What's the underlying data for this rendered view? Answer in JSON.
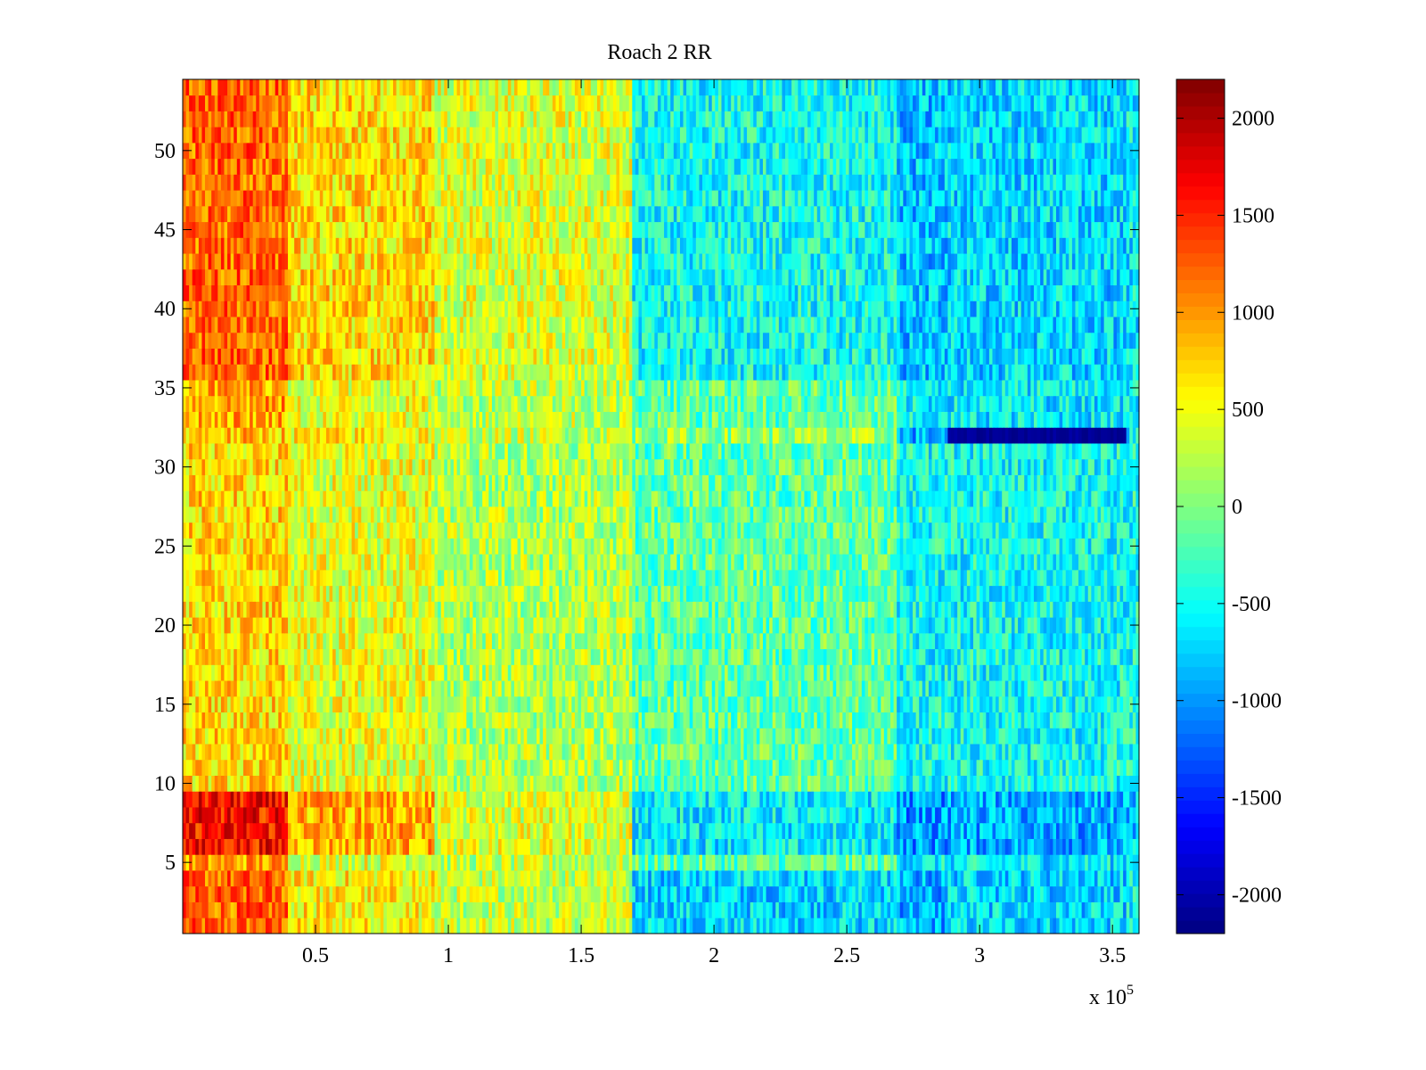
{
  "chart_data": {
    "type": "heatmap",
    "title": "Roach 2 RR",
    "xlabel": "",
    "ylabel": "",
    "x_multiplier": {
      "base": "x 10",
      "exponent": "5"
    },
    "xlim": [
      0,
      3.6
    ],
    "ylim": [
      0.5,
      54.5
    ],
    "x_ticks": [
      {
        "value": 0.5,
        "label": "0.5"
      },
      {
        "value": 1,
        "label": "1"
      },
      {
        "value": 1.5,
        "label": "1.5"
      },
      {
        "value": 2,
        "label": "2"
      },
      {
        "value": 2.5,
        "label": "2.5"
      },
      {
        "value": 3,
        "label": "3"
      },
      {
        "value": 3.5,
        "label": "3.5"
      }
    ],
    "y_ticks": [
      {
        "value": 5,
        "label": "5"
      },
      {
        "value": 10,
        "label": "10"
      },
      {
        "value": 15,
        "label": "15"
      },
      {
        "value": 20,
        "label": "20"
      },
      {
        "value": 25,
        "label": "25"
      },
      {
        "value": 30,
        "label": "30"
      },
      {
        "value": 35,
        "label": "35"
      },
      {
        "value": 40,
        "label": "40"
      },
      {
        "value": 45,
        "label": "45"
      },
      {
        "value": 50,
        "label": "50"
      }
    ],
    "colorbar": {
      "colormap": "jet",
      "clim": [
        -2200,
        2200
      ],
      "ticks": [
        {
          "value": 2000,
          "label": "2000"
        },
        {
          "value": 1500,
          "label": "1500"
        },
        {
          "value": 1000,
          "label": "1000"
        },
        {
          "value": 500,
          "label": "500"
        },
        {
          "value": 0,
          "label": "0"
        },
        {
          "value": -500,
          "label": "-500"
        },
        {
          "value": -1000,
          "label": "-1000"
        },
        {
          "value": -1500,
          "label": "-1500"
        },
        {
          "value": -2000,
          "label": "-2000"
        }
      ]
    },
    "rows": 54,
    "x_segments_start": [
      0,
      0.4,
      0.95,
      1.69,
      2.69,
      2.88,
      3.55
    ],
    "segment_means": {
      "default": [
        950,
        450,
        250,
        -150,
        -600,
        -600,
        -500
      ],
      "rows_1_4": [
        1200,
        600,
        300,
        -700,
        -900,
        -700,
        -600
      ],
      "rows_6_9": [
        1600,
        900,
        400,
        -600,
        -1000,
        -900,
        -800
      ],
      "rows_10_31": [
        700,
        450,
        200,
        -150,
        -500,
        -500,
        -450
      ],
      "rows_36_54": [
        1200,
        700,
        400,
        -500,
        -800,
        -700,
        -600
      ],
      "row_32": [
        800,
        600,
        300,
        100,
        -900,
        -2100,
        -600
      ]
    },
    "noise_amplitude": 450
  },
  "colors": {
    "background": "#ffffff",
    "axes": "#000000"
  }
}
